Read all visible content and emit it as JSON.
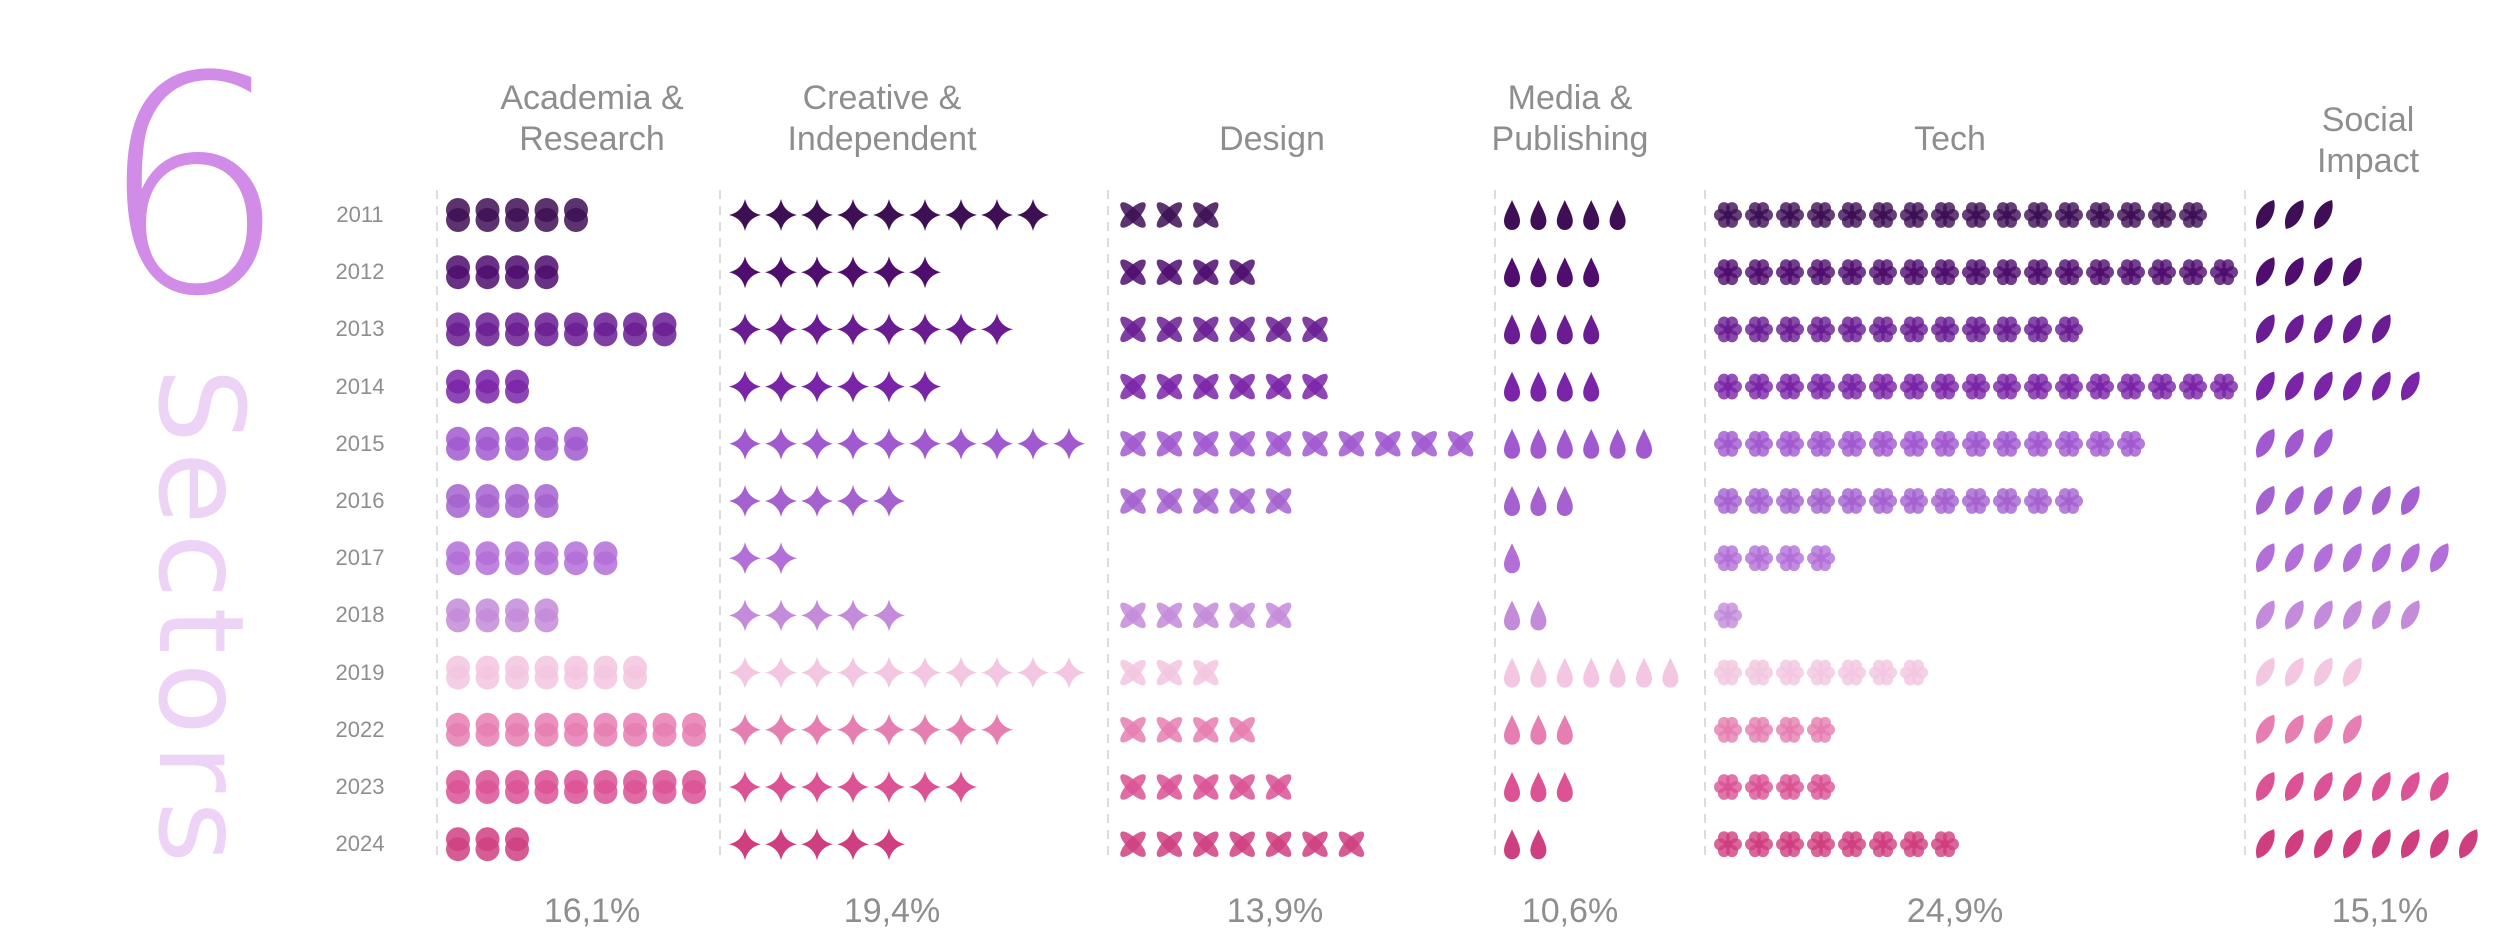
{
  "headline": {
    "number": "6",
    "word": "Sectors"
  },
  "chart_data": {
    "type": "pictograph",
    "years": [
      "2011",
      "2012",
      "2013",
      "2014",
      "2015",
      "2016",
      "2017",
      "2018",
      "2019",
      "2022",
      "2023",
      "2024"
    ],
    "colors": [
      "#3E0F55",
      "#4F0D6E",
      "#6A1D93",
      "#7A25A8",
      "#A159CF",
      "#A461CF",
      "#B36FD8",
      "#C38BD9",
      "#F3C6E1",
      "#E67EB2",
      "#DB5295",
      "#CF3F80"
    ],
    "series": [
      {
        "name": "Academia & Research",
        "icon": "double-circle-icon",
        "share": "16,1%",
        "values": [
          5,
          4,
          8,
          3,
          5,
          4,
          6,
          4,
          7,
          9,
          9,
          3
        ]
      },
      {
        "name": "Creative & Independent",
        "icon": "sparkle-star-icon",
        "share": "19,4%",
        "values": [
          9,
          6,
          8,
          6,
          10,
          5,
          2,
          5,
          10,
          8,
          7,
          5
        ]
      },
      {
        "name": "Design",
        "icon": "x-petal-icon",
        "share": "13,9%",
        "values": [
          3,
          4,
          6,
          6,
          10,
          5,
          0,
          5,
          3,
          4,
          5,
          7
        ]
      },
      {
        "name": "Media & Publishing",
        "icon": "drop-icon",
        "share": "10,6%",
        "values": [
          5,
          4,
          4,
          4,
          6,
          3,
          1,
          2,
          7,
          3,
          3,
          2
        ]
      },
      {
        "name": "Tech",
        "icon": "flower-icon",
        "share": "24,9%",
        "values": [
          16,
          17,
          12,
          17,
          14,
          12,
          4,
          1,
          7,
          4,
          4,
          8
        ]
      },
      {
        "name": "Social Impact",
        "icon": "leaf-icon",
        "share": "15,1%",
        "values": [
          3,
          4,
          5,
          6,
          3,
          6,
          7,
          6,
          4,
          4,
          7,
          8
        ]
      }
    ]
  }
}
